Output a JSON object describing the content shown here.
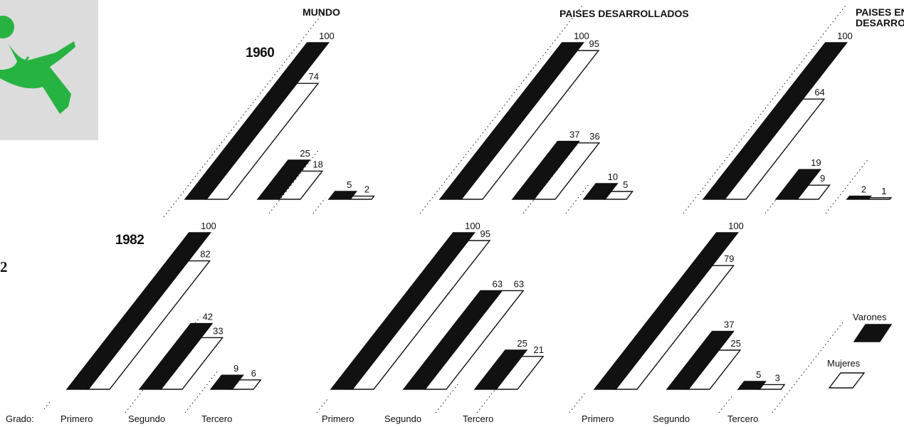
{
  "page_number": "2",
  "colors": {
    "varones": "#111111",
    "mujeres": "#ffffff",
    "figure_green": "#27b341",
    "thumb_bg": "#dcdcdc"
  },
  "chart_data": {
    "type": "bar",
    "x_label_prefix": "Grado:",
    "categories": [
      "Primero",
      "Segundo",
      "Tercero"
    ],
    "groups": [
      {
        "label": "MUNDO"
      },
      {
        "label": "PAISES DESARROLLADOS"
      },
      {
        "label": "PAISES EN DESARROLLO"
      }
    ],
    "years": [
      {
        "label": "1960",
        "panels": [
          {
            "varones": [
              100,
              25,
              5
            ],
            "mujeres": [
              74,
              18,
              2
            ]
          },
          {
            "varones": [
              100,
              37,
              10
            ],
            "mujeres": [
              95,
              36,
              5
            ]
          },
          {
            "varones": [
              100,
              19,
              2
            ],
            "mujeres": [
              64,
              9,
              1
            ]
          }
        ]
      },
      {
        "label": "1982",
        "panels": [
          {
            "varones": [
              100,
              42,
              9
            ],
            "mujeres": [
              82,
              33,
              6
            ]
          },
          {
            "varones": [
              100,
              63,
              25
            ],
            "mujeres": [
              95,
              63,
              21
            ]
          },
          {
            "varones": [
              100,
              37,
              5
            ],
            "mujeres": [
              79,
              25,
              3
            ]
          }
        ]
      }
    ],
    "legend": [
      {
        "name": "Varones",
        "color": "#111111"
      },
      {
        "name": "Mujeres",
        "color": "#ffffff"
      }
    ],
    "legend_position": "right"
  }
}
